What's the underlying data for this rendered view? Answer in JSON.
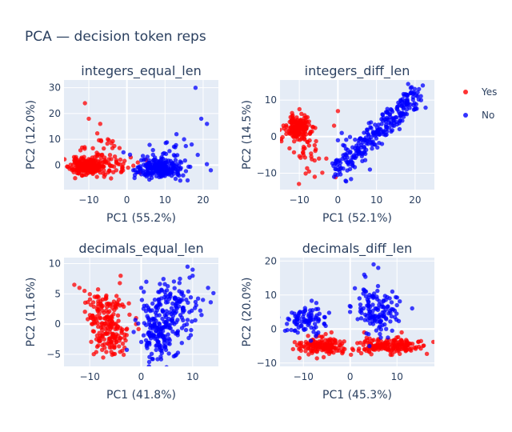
{
  "title": "PCA — decision token reps",
  "legend": {
    "items": [
      {
        "label": "Yes",
        "color": "#ff0000"
      },
      {
        "label": "No",
        "color": "#0000ff"
      }
    ]
  },
  "colors": {
    "plot_bg": "#e5ecf6",
    "grid": "#ffffff",
    "text": "#2a3f5f"
  },
  "chart_data": [
    {
      "type": "scatter",
      "title": "integers_equal_len",
      "xlabel": "PC1 (55.2%)",
      "ylabel": "PC2 (12.0%)",
      "xlim": [
        -16.5,
        24
      ],
      "ylim": [
        -9.5,
        33
      ],
      "xticks": [
        -10,
        0,
        10,
        20
      ],
      "yticks": [
        0,
        10,
        20,
        30
      ],
      "grid": true,
      "series": [
        {
          "name": "Yes",
          "color": "#ff0000",
          "clusters": [
            {
              "cx": -10.5,
              "cy": -0.5,
              "sx": 2.2,
              "sy": 1.6,
              "n": 200,
              "seed": 11
            },
            {
              "cx": -7.5,
              "cy": 4.0,
              "sx": 3.0,
              "sy": 3.5,
              "n": 45,
              "seed": 12
            },
            {
              "cx": -3.0,
              "cy": -1.0,
              "sx": 2.5,
              "sy": 1.5,
              "n": 25,
              "seed": 13
            }
          ],
          "points": [
            [
              -11,
              24
            ],
            [
              -10,
              18
            ],
            [
              -7,
              16
            ],
            [
              -5,
              10
            ],
            [
              1,
              3
            ],
            [
              5,
              2
            ]
          ]
        },
        {
          "name": "No",
          "color": "#0000ff",
          "clusters": [
            {
              "cx": 8.5,
              "cy": -1.5,
              "sx": 3.0,
              "sy": 1.8,
              "n": 210,
              "seed": 21
            },
            {
              "cx": 10.0,
              "cy": 3.0,
              "sx": 3.5,
              "sy": 2.8,
              "n": 50,
              "seed": 22
            }
          ],
          "points": [
            [
              18,
              30
            ],
            [
              19.5,
              18
            ],
            [
              21,
              16
            ],
            [
              15,
              10
            ],
            [
              17,
              8
            ],
            [
              13,
              12
            ],
            [
              2,
              -5
            ],
            [
              22,
              -2
            ],
            [
              14,
              -6
            ]
          ]
        }
      ]
    },
    {
      "type": "scatter",
      "title": "integers_diff_len",
      "xlabel": "PC1 (52.1%)",
      "ylabel": "PC2 (14.5%)",
      "xlim": [
        -15,
        25
      ],
      "ylim": [
        -14.5,
        15.5
      ],
      "xticks": [
        -10,
        0,
        10,
        20
      ],
      "yticks": [
        -10,
        0,
        10
      ],
      "grid": true,
      "series": [
        {
          "name": "Yes",
          "color": "#ff0000",
          "clusters": [
            {
              "cx": -10.5,
              "cy": 2.5,
              "sx": 1.6,
              "sy": 1.6,
              "n": 170,
              "seed": 31
            },
            {
              "cx": -8.0,
              "cy": -3.0,
              "sx": 2.0,
              "sy": 3.5,
              "n": 40,
              "seed": 32
            }
          ],
          "points": [
            [
              0,
              7
            ],
            [
              -1,
              3
            ],
            [
              -3,
              -6
            ],
            [
              -6,
              -11
            ]
          ]
        },
        {
          "name": "No",
          "color": "#0000ff",
          "line": {
            "x0": -1,
            "y0": -10,
            "x1": 21,
            "y1": 12,
            "n": 280,
            "spread": 1.6,
            "seed": 41
          },
          "points": [
            [
              22,
              14
            ],
            [
              21,
              13
            ],
            [
              0,
              -1
            ],
            [
              1,
              1
            ],
            [
              -1,
              -11
            ]
          ]
        }
      ]
    },
    {
      "type": "scatter",
      "title": "decimals_equal_len",
      "xlabel": "PC1 (41.8%)",
      "ylabel": "PC2 (11.6%)",
      "xlim": [
        -15,
        15
      ],
      "ylim": [
        -7,
        11
      ],
      "xticks": [
        -10,
        0,
        10
      ],
      "yticks": [
        -5,
        0,
        5,
        10
      ],
      "grid": true,
      "series": [
        {
          "name": "Yes",
          "color": "#ff0000",
          "clusters": [
            {
              "cx": -7.5,
              "cy": 2.0,
              "sx": 1.8,
              "sy": 1.8,
              "n": 100,
              "seed": 51
            },
            {
              "cx": -5.5,
              "cy": -2.0,
              "sx": 1.5,
              "sy": 1.8,
              "n": 110,
              "seed": 52
            }
          ],
          "points": [
            [
              -13,
              6.5
            ],
            [
              -12,
              6
            ],
            [
              -11,
              5.5
            ],
            [
              -4,
              8
            ],
            [
              -1,
              0
            ],
            [
              -1,
              1
            ]
          ]
        },
        {
          "name": "No",
          "color": "#0000ff",
          "clusters": [
            {
              "cx": 3.0,
              "cy": -2.0,
              "sx": 2.2,
              "sy": 2.0,
              "n": 130,
              "seed": 61
            },
            {
              "cx": 6.0,
              "cy": 2.5,
              "sx": 2.8,
              "sy": 2.5,
              "n": 150,
              "seed": 62
            }
          ],
          "points": [
            [
              9,
              9.5
            ],
            [
              10,
              9
            ],
            [
              10,
              8
            ],
            [
              13,
              6
            ],
            [
              12,
              4
            ],
            [
              0,
              6
            ],
            [
              1,
              7
            ]
          ]
        }
      ]
    },
    {
      "type": "scatter",
      "title": "decimals_diff_len",
      "xlabel": "PC1 (45.3%)",
      "ylabel": "PC2 (20.0%)",
      "xlim": [
        -15,
        18
      ],
      "ylim": [
        -11,
        21
      ],
      "xticks": [
        -10,
        0,
        10
      ],
      "yticks": [
        -10,
        0,
        10,
        20
      ],
      "grid": true,
      "series": [
        {
          "name": "Yes",
          "color": "#ff0000",
          "clusters": [
            {
              "cx": -6.0,
              "cy": -5.0,
              "sx": 2.8,
              "sy": 1.2,
              "n": 150,
              "seed": 71
            },
            {
              "cx": 8.5,
              "cy": -5.0,
              "sx": 3.6,
              "sy": 1.2,
              "n": 170,
              "seed": 72
            }
          ],
          "points": [
            [
              -9,
              -2
            ],
            [
              -4,
              -1
            ],
            [
              3,
              -1
            ],
            [
              6,
              -3
            ],
            [
              11,
              -1
            ]
          ]
        },
        {
          "name": "No",
          "color": "#0000ff",
          "clusters": [
            {
              "cx": -9.5,
              "cy": 3.0,
              "sx": 2.0,
              "sy": 2.2,
              "n": 90,
              "seed": 81
            },
            {
              "cx": 5.5,
              "cy": 5.0,
              "sx": 2.5,
              "sy": 4.0,
              "n": 130,
              "seed": 82
            }
          ],
          "points": [
            [
              5,
              19
            ],
            [
              6,
              18
            ],
            [
              3,
              16
            ],
            [
              1,
              12
            ],
            [
              9,
              11
            ],
            [
              10,
              7
            ]
          ]
        }
      ]
    }
  ]
}
